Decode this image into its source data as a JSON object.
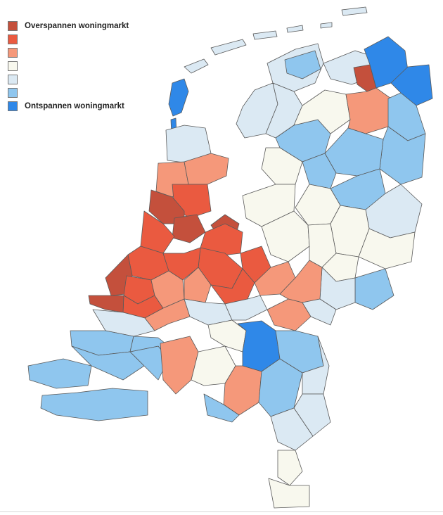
{
  "map": {
    "legend": [
      {
        "label": "Overspannen woningmarkt",
        "color": "#c4503c"
      },
      {
        "label": "",
        "color": "#ea5a40"
      },
      {
        "label": "",
        "color": "#f5987a"
      },
      {
        "label": "",
        "color": "#f8f8ee"
      },
      {
        "label": "",
        "color": "#dbe9f3"
      },
      {
        "label": "",
        "color": "#8fc6ee"
      },
      {
        "label": "Ontspannen woningmarkt",
        "color": "#2f88e8"
      }
    ],
    "classes": {
      "very_tight": "#c4503c",
      "tight": "#ea5a40",
      "somewhat_tight": "#f5987a",
      "balanced": "#f8f8ee",
      "somewhat_relaxed": "#dbe9f3",
      "relaxed": "#8fc6ee",
      "very_relaxed": "#2f88e8"
    },
    "water_color": "#ffffff",
    "border_color": "#5a5a5a"
  }
}
